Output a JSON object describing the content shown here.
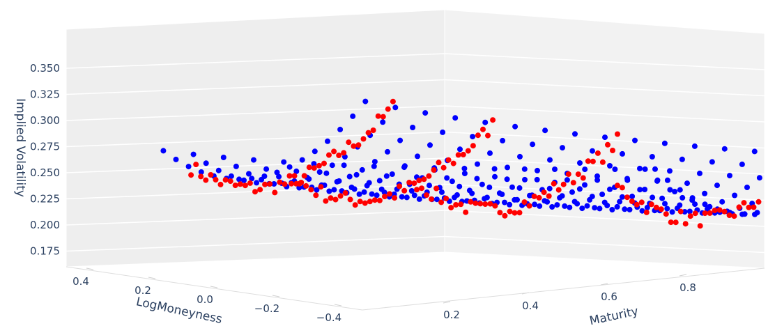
{
  "chart_data": {
    "type": "scatter3d",
    "axes": {
      "x": {
        "title": "LogMoneyness",
        "ticks": [
          "0.4",
          "0.2",
          "0.0",
          "−0.2",
          "−0.4"
        ],
        "range": [
          -0.5,
          0.5
        ]
      },
      "y": {
        "title": "Maturity",
        "ticks": [
          "0.2",
          "0.4",
          "0.6",
          "0.8"
        ],
        "range": [
          0.0,
          1.0
        ]
      },
      "z": {
        "title": "Implied Volatility",
        "ticks": [
          "0.175",
          "0.200",
          "0.225",
          "0.250",
          "0.275",
          "0.300",
          "0.325",
          "0.350"
        ],
        "range": [
          0.16,
          0.36
        ]
      }
    },
    "grid": true,
    "series": [
      {
        "marker_color": "#0000ff",
        "kind": "fitted surface grid",
        "logmoneyness": [
          0.4,
          0.35,
          0.3,
          0.25,
          0.2,
          0.15,
          0.1,
          0.05,
          0.0,
          -0.05,
          -0.1,
          -0.15,
          -0.2,
          -0.25,
          -0.3,
          -0.35,
          -0.4
        ],
        "maturity": [
          0.02,
          0.08,
          0.14,
          0.2,
          0.26,
          0.32,
          0.38,
          0.44,
          0.5,
          0.56,
          0.62,
          0.68,
          0.74,
          0.8,
          0.86,
          0.92,
          0.98,
          1.0
        ]
      },
      {
        "marker_color": "#ff0000",
        "kind": "market slices",
        "maturity_slices": [
          0.05,
          0.25,
          0.5,
          0.9
        ]
      }
    ]
  }
}
